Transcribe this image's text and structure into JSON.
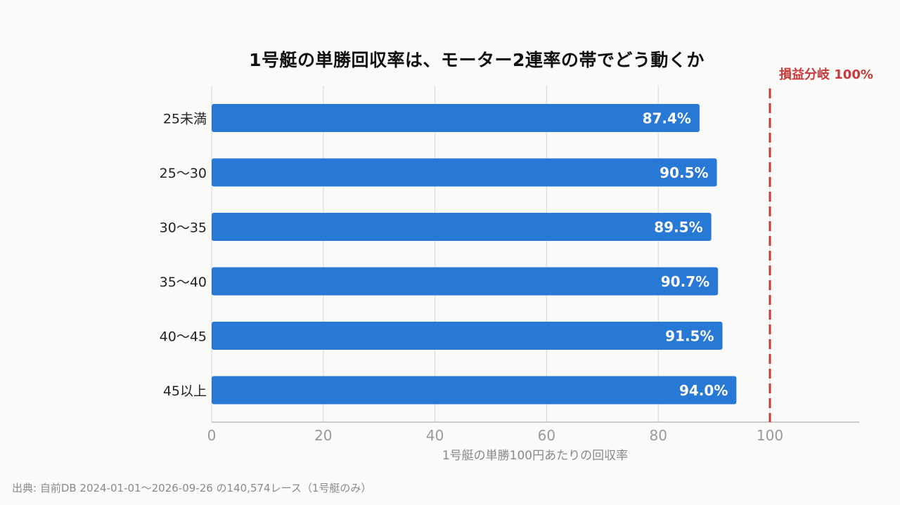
{
  "chart_data": {
    "type": "bar",
    "orientation": "horizontal",
    "title": "1号艇の単勝回収率は、モーター2連率の帯でどう動くか",
    "categories": [
      "25未満",
      "25〜30",
      "30〜35",
      "35〜40",
      "40〜45",
      "45以上"
    ],
    "values": [
      87.4,
      90.5,
      89.5,
      90.7,
      91.5,
      94.0
    ],
    "value_labels": [
      "87.4%",
      "90.5%",
      "89.5%",
      "90.7%",
      "91.5%",
      "94.0%"
    ],
    "xlabel": "1号艇の単勝100円あたりの回収率",
    "ylabel": "",
    "xlim": [
      0,
      116
    ],
    "xticks": [
      0,
      20,
      40,
      60,
      80,
      100
    ],
    "grid": true,
    "reference_line": {
      "value": 100,
      "label": "損益分岐 100%",
      "color": "#c9393a",
      "style": "dashed"
    },
    "colors": {
      "bar": "#2878d6",
      "bar_label": "#ffffff",
      "grid": "#dddddd",
      "axis": "#bbbbbb",
      "tick_label": "#999999",
      "category_label": "#222222",
      "xlabel": "#888888"
    }
  },
  "source": "出典: 自前DB 2024-01-01〜2026-09-26 の140,574レース（1号艇のみ）"
}
